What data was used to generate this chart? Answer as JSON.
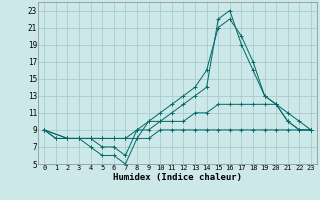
{
  "xlabel": "Humidex (Indice chaleur)",
  "bg_color": "#cce8e8",
  "grid_color": "#aacccc",
  "line_color": "#006868",
  "xlim": [
    -0.5,
    23.5
  ],
  "ylim": [
    5,
    24
  ],
  "xticks": [
    0,
    1,
    2,
    3,
    4,
    5,
    6,
    7,
    8,
    9,
    10,
    11,
    12,
    13,
    14,
    15,
    16,
    17,
    18,
    19,
    20,
    21,
    22,
    23
  ],
  "yticks": [
    5,
    7,
    9,
    11,
    13,
    15,
    17,
    19,
    21,
    23
  ],
  "line1_x": [
    0,
    1,
    2,
    3,
    4,
    5,
    6,
    7,
    8,
    9,
    10,
    11,
    12,
    13,
    14,
    15,
    16,
    17,
    18,
    19,
    20,
    21,
    22,
    23
  ],
  "line1_y": [
    9,
    8,
    8,
    8,
    8,
    8,
    8,
    8,
    8,
    8,
    9,
    9,
    9,
    9,
    9,
    9,
    9,
    9,
    9,
    9,
    9,
    9,
    9,
    9
  ],
  "line2_x": [
    0,
    1,
    2,
    3,
    4,
    5,
    6,
    7,
    8,
    9,
    10,
    11,
    12,
    13,
    14,
    15,
    16,
    17,
    18,
    19,
    20,
    21,
    22,
    23
  ],
  "line2_y": [
    9,
    8,
    8,
    8,
    8,
    8,
    8,
    8,
    9,
    10,
    10,
    10,
    10,
    11,
    11,
    12,
    12,
    12,
    12,
    12,
    12,
    11,
    10,
    9
  ],
  "line3_x": [
    0,
    2,
    3,
    4,
    5,
    6,
    7,
    8,
    9,
    10,
    11,
    12,
    13,
    14,
    15,
    16,
    17,
    18,
    19,
    20,
    21,
    22,
    23
  ],
  "line3_y": [
    9,
    8,
    8,
    8,
    7,
    7,
    6,
    9,
    9,
    10,
    11,
    12,
    13,
    14,
    22,
    23,
    19,
    16,
    13,
    12,
    10,
    9,
    9
  ],
  "line4_x": [
    0,
    2,
    3,
    4,
    5,
    6,
    7,
    8,
    9,
    10,
    11,
    12,
    13,
    14,
    15,
    16,
    17,
    18,
    19,
    20,
    21,
    22,
    23
  ],
  "line4_y": [
    9,
    8,
    8,
    7,
    6,
    6,
    5,
    8,
    10,
    11,
    12,
    13,
    14,
    16,
    21,
    22,
    20,
    17,
    13,
    12,
    10,
    9,
    9
  ]
}
